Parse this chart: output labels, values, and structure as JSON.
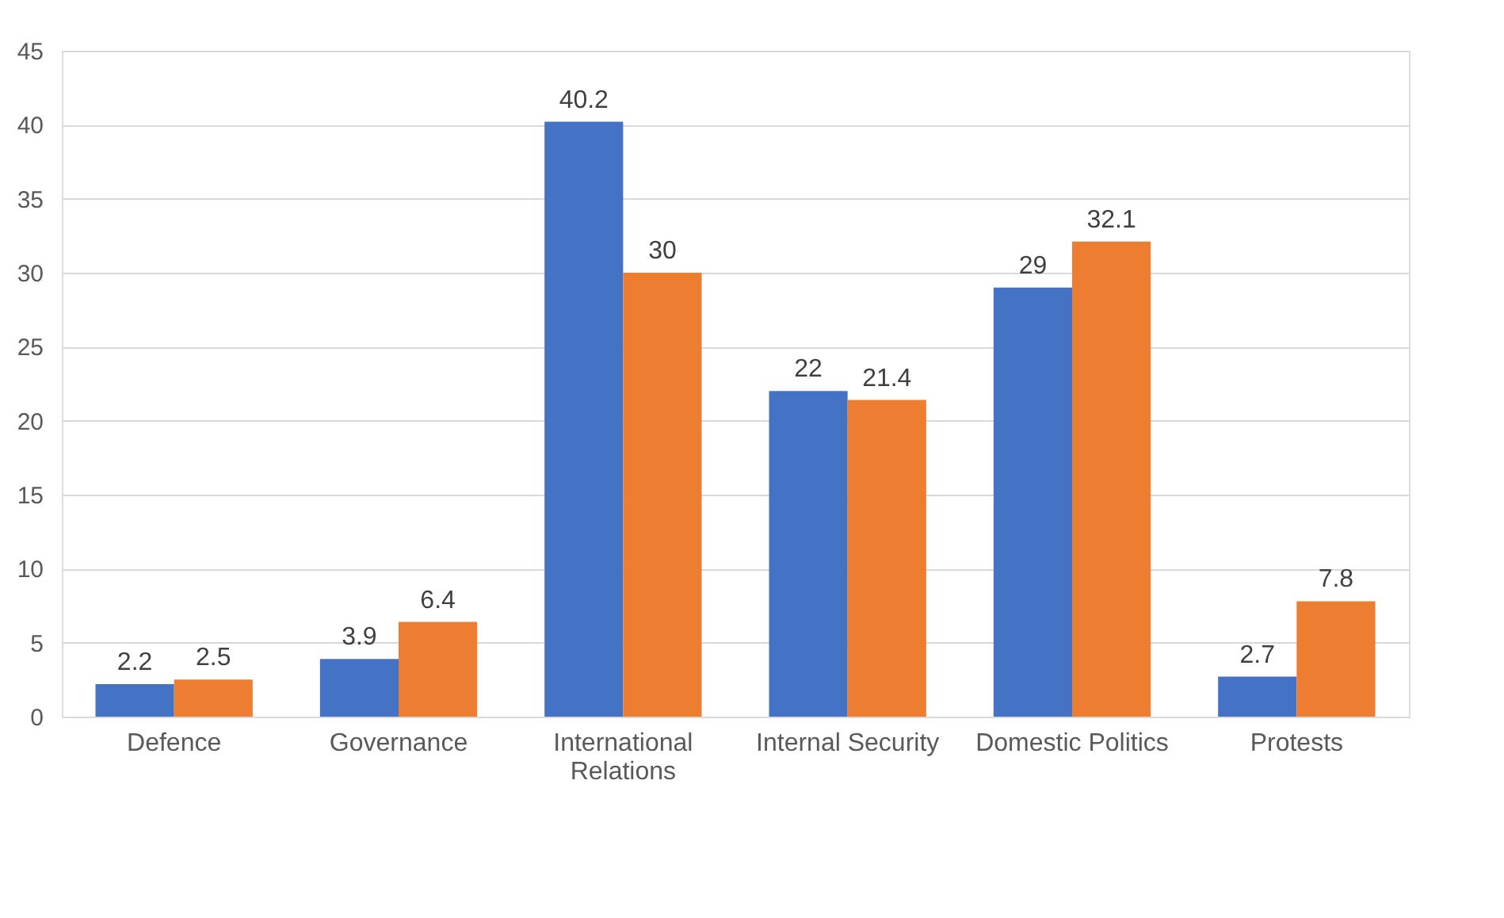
{
  "chart_data": {
    "type": "bar",
    "categories": [
      "Defence",
      "Governance",
      "International Relations",
      "Internal Security",
      "Domestic Politics",
      "Protests"
    ],
    "series": [
      {
        "color": "#4472c4",
        "values": [
          2.2,
          3.9,
          40.2,
          22,
          29,
          2.7
        ]
      },
      {
        "color": "#ed7d31",
        "values": [
          2.5,
          6.4,
          30,
          21.4,
          32.1,
          7.8
        ]
      }
    ],
    "ylim": [
      0,
      45
    ],
    "yticks": [
      0,
      5,
      10,
      15,
      20,
      25,
      30,
      35,
      40,
      45
    ],
    "grid": "y",
    "data_labels": true
  }
}
